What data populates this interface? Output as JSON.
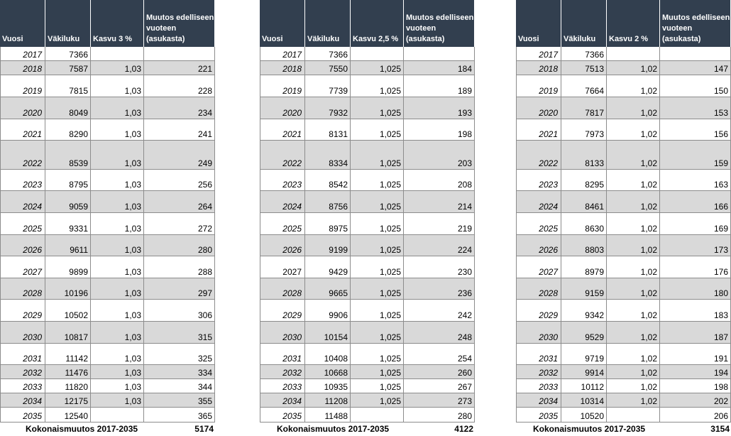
{
  "total_label": "Kokonaismuutos 2017-2035",
  "tables": [
    {
      "headers": [
        "Vuosi",
        "Väkiluku",
        "Kasvu 3 %",
        "Muutos edelliseen vuoteen (asukasta)"
      ],
      "rows": [
        [
          "2017",
          "7366",
          "",
          ""
        ],
        [
          "2018",
          "7587",
          "1,03",
          "221"
        ],
        [
          "2019",
          "7815",
          "1,03",
          "228"
        ],
        [
          "2020",
          "8049",
          "1,03",
          "234"
        ],
        [
          "2021",
          "8290",
          "1,03",
          "241"
        ],
        [
          "2022",
          "8539",
          "1,03",
          "249"
        ],
        [
          "2023",
          "8795",
          "1,03",
          "256"
        ],
        [
          "2024",
          "9059",
          "1,03",
          "264"
        ],
        [
          "2025",
          "9331",
          "1,03",
          "272"
        ],
        [
          "2026",
          "9611",
          "1,03",
          "280"
        ],
        [
          "2027",
          "9899",
          "1,03",
          "288"
        ],
        [
          "2028",
          "10196",
          "1,03",
          "297"
        ],
        [
          "2029",
          "10502",
          "1,03",
          "306"
        ],
        [
          "2030",
          "10817",
          "1,03",
          "315"
        ],
        [
          "2031",
          "11142",
          "1,03",
          "325"
        ],
        [
          "2032",
          "11476",
          "1,03",
          "334"
        ],
        [
          "2033",
          "11820",
          "1,03",
          "344"
        ],
        [
          "2034",
          "12175",
          "1,03",
          "355"
        ],
        [
          "2035",
          "12540",
          "",
          "365"
        ]
      ],
      "total": "5174"
    },
    {
      "headers": [
        "Vuosi",
        "Väkiluku",
        "Kasvu 2,5 %",
        "Muutos edelliseen vuoteen (asukasta)"
      ],
      "rows": [
        [
          "2017",
          "7366",
          "",
          ""
        ],
        [
          "2018",
          "7550",
          "1,025",
          "184"
        ],
        [
          "2019",
          "7739",
          "1,025",
          "189"
        ],
        [
          "2020",
          "7932",
          "1,025",
          "193"
        ],
        [
          "2021",
          "8131",
          "1,025",
          "198"
        ],
        [
          "2022",
          "8334",
          "1,025",
          "203"
        ],
        [
          "2023",
          "8542",
          "1,025",
          "208"
        ],
        [
          "2024",
          "8756",
          "1,025",
          "214"
        ],
        [
          "2025",
          "8975",
          "1,025",
          "219"
        ],
        [
          "2026",
          "9199",
          "1,025",
          "224"
        ],
        [
          "2027",
          "9429",
          "1,025",
          "230"
        ],
        [
          "2028",
          "9665",
          "1,025",
          "236"
        ],
        [
          "2029",
          "9906",
          "1,025",
          "242"
        ],
        [
          "2030",
          "10154",
          "1,025",
          "248"
        ],
        [
          "2031",
          "10408",
          "1,025",
          "254"
        ],
        [
          "2032",
          "10668",
          "1,025",
          "260"
        ],
        [
          "2033",
          "10935",
          "1,025",
          "267"
        ],
        [
          "2034",
          "11208",
          "1,025",
          "273"
        ],
        [
          "2035",
          "11488",
          "",
          "280"
        ]
      ],
      "total": "4122"
    },
    {
      "headers": [
        "Vuosi",
        "Väkiluku",
        "Kasvu 2 %",
        "Muutos edelliseen vuoteen (asukasta)"
      ],
      "rows": [
        [
          "2017",
          "7366",
          "",
          ""
        ],
        [
          "2018",
          "7513",
          "1,02",
          "147"
        ],
        [
          "2019",
          "7664",
          "1,02",
          "150"
        ],
        [
          "2020",
          "7817",
          "1,02",
          "153"
        ],
        [
          "2021",
          "7973",
          "1,02",
          "156"
        ],
        [
          "2022",
          "8133",
          "1,02",
          "159"
        ],
        [
          "2023",
          "8295",
          "1,02",
          "163"
        ],
        [
          "2024",
          "8461",
          "1,02",
          "166"
        ],
        [
          "2025",
          "8630",
          "1,02",
          "169"
        ],
        [
          "2026",
          "8803",
          "1,02",
          "173"
        ],
        [
          "2027",
          "8979",
          "1,02",
          "176"
        ],
        [
          "2028",
          "9159",
          "1,02",
          "180"
        ],
        [
          "2029",
          "9342",
          "1,02",
          "183"
        ],
        [
          "2030",
          "9529",
          "1,02",
          "187"
        ],
        [
          "2031",
          "9719",
          "1,02",
          "191"
        ],
        [
          "2032",
          "9914",
          "1,02",
          "194"
        ],
        [
          "2033",
          "10112",
          "1,02",
          "198"
        ],
        [
          "2034",
          "10314",
          "1,02",
          "202"
        ],
        [
          "2035",
          "10520",
          "",
          "206"
        ]
      ],
      "total": "3154"
    }
  ]
}
